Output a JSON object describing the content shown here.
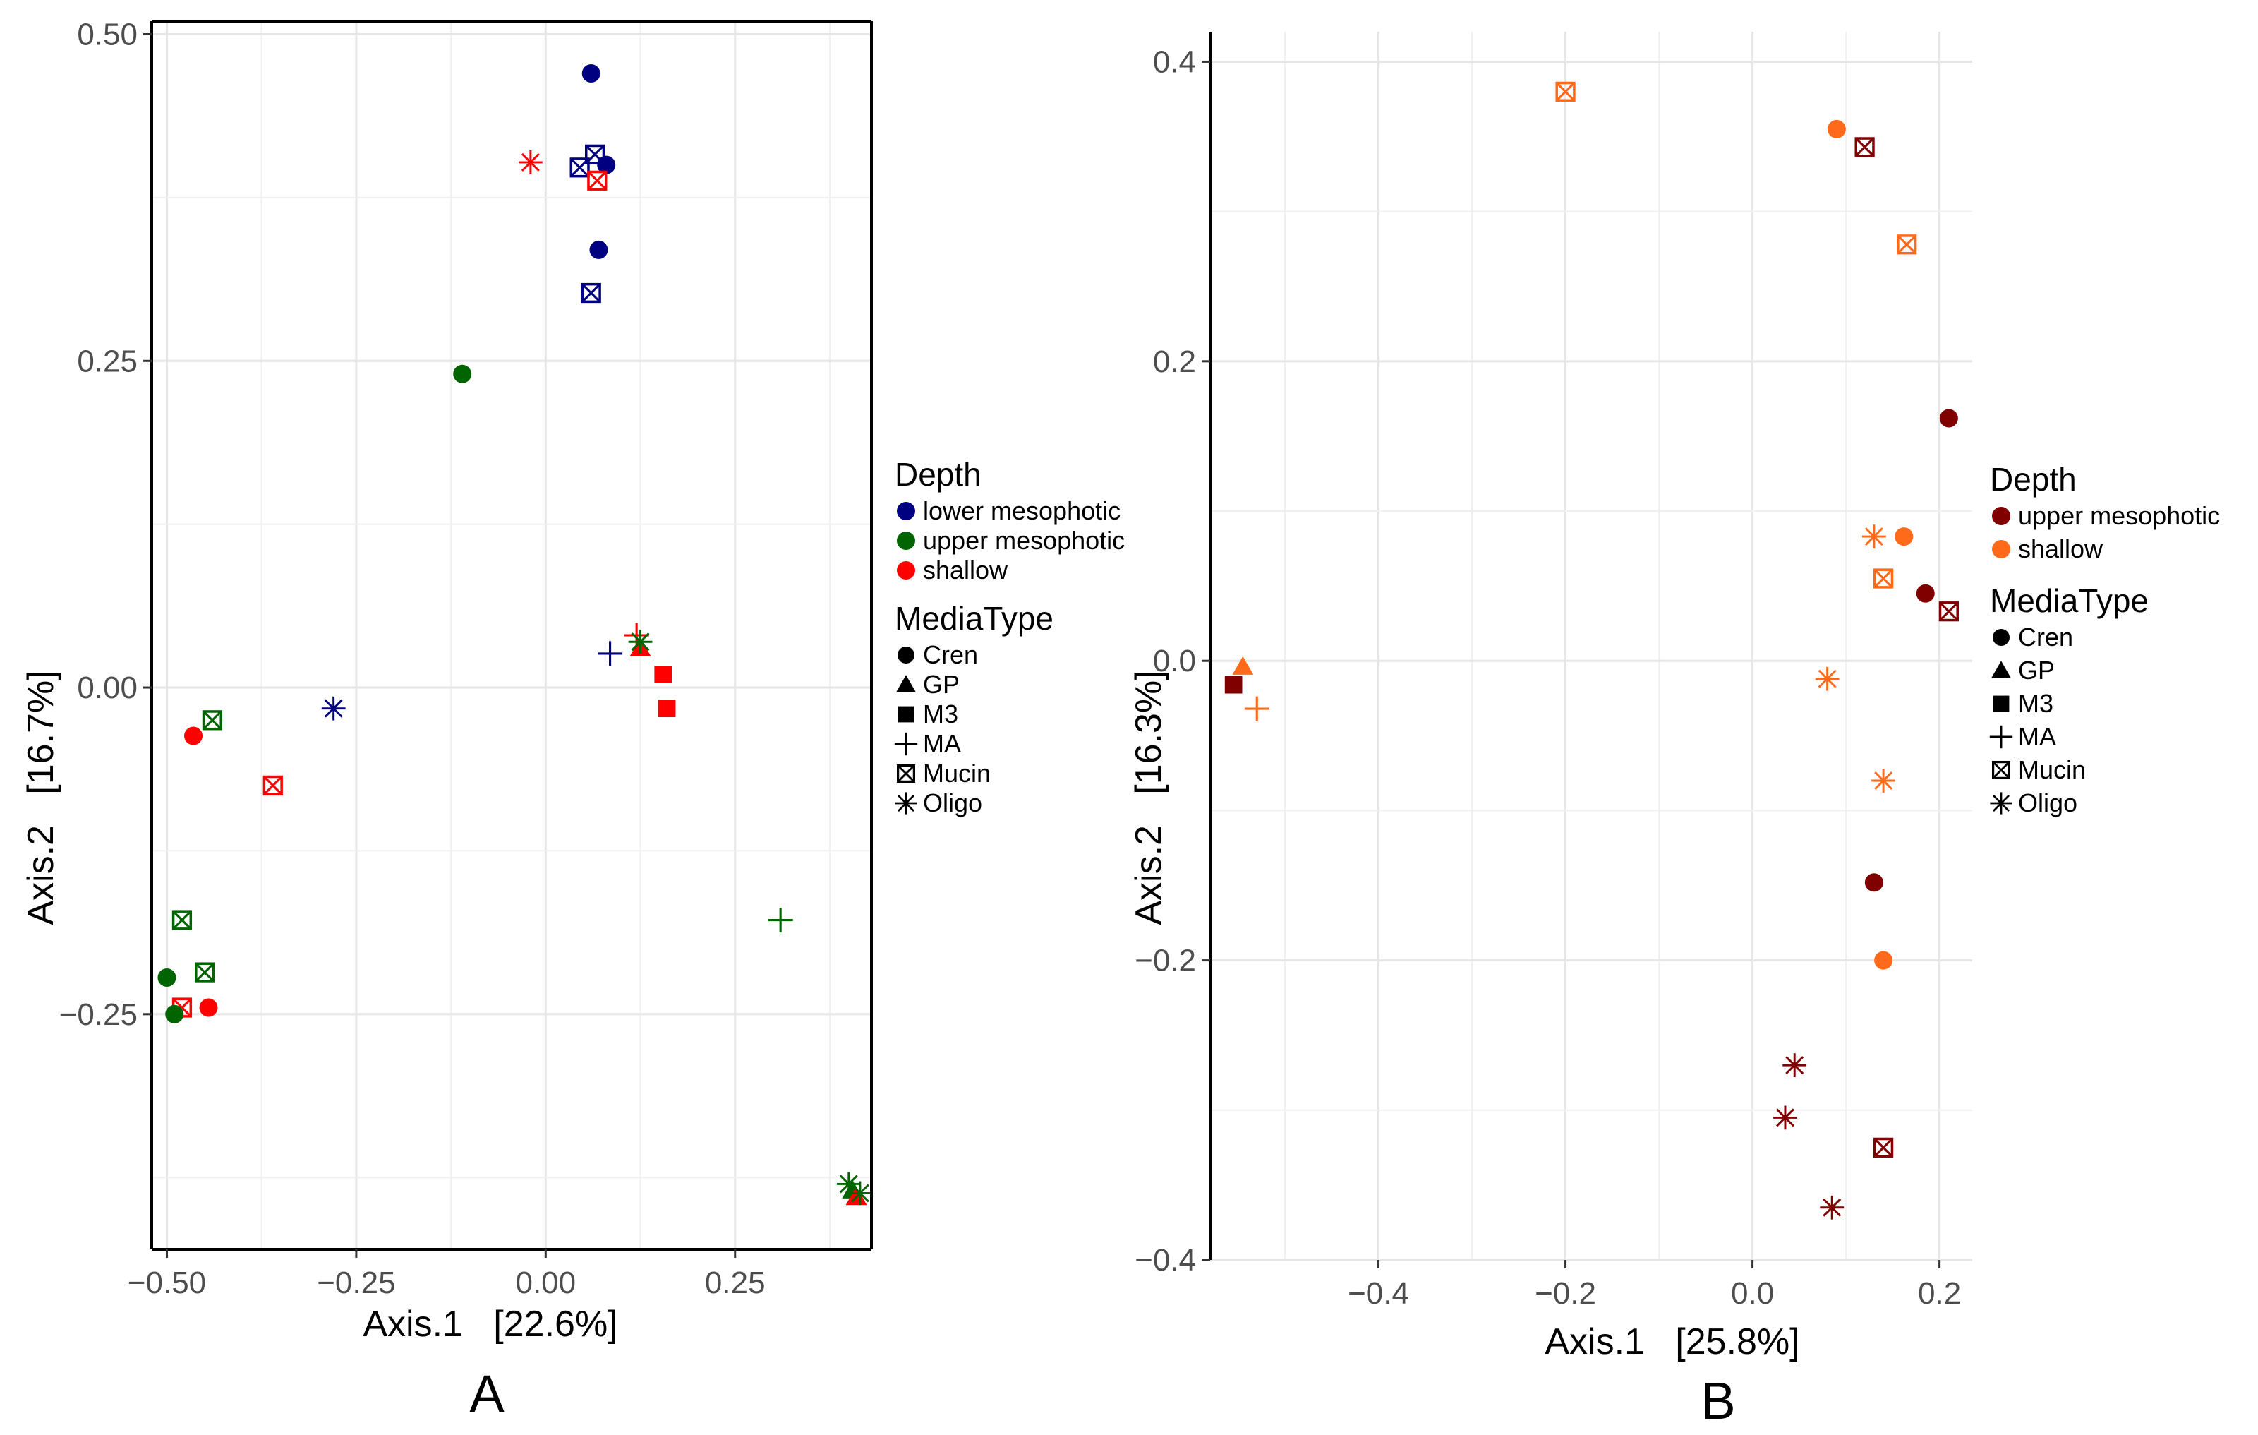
{
  "chart_data": [
    {
      "panel_label": "A",
      "type": "scatter",
      "xlabel": "Axis.1   [22.6%]",
      "ylabel": "Axis.2   [16.7%]",
      "xlim": [
        -0.52,
        0.43
      ],
      "ylim": [
        -0.43,
        0.51
      ],
      "xticks": [
        -0.5,
        -0.25,
        0.0,
        0.25
      ],
      "xtick_labels": [
        "−0.50",
        "−0.25",
        "0.00",
        "0.25"
      ],
      "yticks": [
        -0.25,
        0.0,
        0.25,
        0.5
      ],
      "ytick_labels": [
        "−0.25",
        "0.00",
        "0.25",
        "0.50"
      ],
      "grid": true,
      "legend": {
        "placement": "right",
        "color_title": "Depth",
        "color_entries": [
          {
            "label": "lower mesophotic",
            "color": "#000080"
          },
          {
            "label": "upper mesophotic",
            "color": "#006400"
          },
          {
            "label": "shallow",
            "color": "#ff0000"
          }
        ],
        "shape_title": "MediaType",
        "shape_entries": [
          {
            "label": "Cren",
            "shape": "circle"
          },
          {
            "label": "GP",
            "shape": "triangle"
          },
          {
            "label": "M3",
            "shape": "square"
          },
          {
            "label": "MA",
            "shape": "plus"
          },
          {
            "label": "Mucin",
            "shape": "boxx"
          },
          {
            "label": "Oligo",
            "shape": "asterisk"
          }
        ]
      },
      "points": [
        {
          "x": 0.06,
          "y": 0.47,
          "depth": "lower mesophotic",
          "media": "Cren"
        },
        {
          "x": 0.08,
          "y": 0.4,
          "depth": "lower mesophotic",
          "media": "Cren"
        },
        {
          "x": 0.07,
          "y": 0.335,
          "depth": "lower mesophotic",
          "media": "Cren"
        },
        {
          "x": 0.045,
          "y": 0.398,
          "depth": "lower mesophotic",
          "media": "Mucin"
        },
        {
          "x": 0.065,
          "y": 0.408,
          "depth": "lower mesophotic",
          "media": "Mucin"
        },
        {
          "x": 0.06,
          "y": 0.302,
          "depth": "lower mesophotic",
          "media": "Mucin"
        },
        {
          "x": -0.02,
          "y": 0.402,
          "depth": "shallow",
          "media": "Oligo"
        },
        {
          "x": 0.068,
          "y": 0.388,
          "depth": "shallow",
          "media": "Mucin"
        },
        {
          "x": -0.11,
          "y": 0.24,
          "depth": "upper mesophotic",
          "media": "Cren"
        },
        {
          "x": 0.085,
          "y": 0.026,
          "depth": "lower mesophotic",
          "media": "MA"
        },
        {
          "x": 0.12,
          "y": 0.04,
          "depth": "shallow",
          "media": "MA"
        },
        {
          "x": 0.125,
          "y": 0.03,
          "depth": "shallow",
          "media": "GP"
        },
        {
          "x": 0.125,
          "y": 0.035,
          "depth": "upper mesophotic",
          "media": "Oligo"
        },
        {
          "x": 0.155,
          "y": 0.01,
          "depth": "shallow",
          "media": "M3"
        },
        {
          "x": 0.16,
          "y": -0.016,
          "depth": "shallow",
          "media": "M3"
        },
        {
          "x": -0.28,
          "y": -0.016,
          "depth": "lower mesophotic",
          "media": "Oligo"
        },
        {
          "x": -0.44,
          "y": -0.025,
          "depth": "upper mesophotic",
          "media": "Mucin"
        },
        {
          "x": -0.465,
          "y": -0.037,
          "depth": "shallow",
          "media": "Cren"
        },
        {
          "x": -0.36,
          "y": -0.075,
          "depth": "shallow",
          "media": "Mucin"
        },
        {
          "x": 0.31,
          "y": -0.178,
          "depth": "upper mesophotic",
          "media": "MA"
        },
        {
          "x": -0.48,
          "y": -0.178,
          "depth": "upper mesophotic",
          "media": "Mucin"
        },
        {
          "x": -0.45,
          "y": -0.218,
          "depth": "upper mesophotic",
          "media": "Mucin"
        },
        {
          "x": -0.5,
          "y": -0.222,
          "depth": "upper mesophotic",
          "media": "Cren"
        },
        {
          "x": -0.48,
          "y": -0.245,
          "depth": "shallow",
          "media": "Mucin"
        },
        {
          "x": -0.49,
          "y": -0.25,
          "depth": "upper mesophotic",
          "media": "Cren"
        },
        {
          "x": -0.445,
          "y": -0.245,
          "depth": "shallow",
          "media": "Cren"
        },
        {
          "x": 0.4,
          "y": -0.38,
          "depth": "upper mesophotic",
          "media": "Oligo"
        },
        {
          "x": 0.405,
          "y": -0.385,
          "depth": "upper mesophotic",
          "media": "GP"
        },
        {
          "x": 0.41,
          "y": -0.39,
          "depth": "shallow",
          "media": "GP"
        },
        {
          "x": 0.415,
          "y": -0.387,
          "depth": "upper mesophotic",
          "media": "Oligo"
        }
      ]
    },
    {
      "panel_label": "B",
      "type": "scatter",
      "xlabel": "Axis.1   [25.8%]",
      "ylabel": "Axis.2   [16.3%]",
      "xlim": [
        -0.58,
        0.235
      ],
      "ylim": [
        -0.4,
        0.42
      ],
      "xticks": [
        -0.4,
        -0.2,
        0.0,
        0.2
      ],
      "xtick_labels": [
        "−0.4",
        "−0.2",
        "0.0",
        "0.2"
      ],
      "yticks": [
        -0.4,
        -0.2,
        0.0,
        0.2,
        0.4
      ],
      "ytick_labels": [
        "−0.4",
        "−0.2",
        "0.0",
        "0.2",
        "0.4"
      ],
      "grid": true,
      "legend": {
        "placement": "right",
        "color_title": "Depth",
        "color_entries": [
          {
            "label": "upper mesophotic",
            "color": "#800000"
          },
          {
            "label": "shallow",
            "color": "#ff6a1a"
          }
        ],
        "shape_title": "MediaType",
        "shape_entries": [
          {
            "label": "Cren",
            "shape": "circle"
          },
          {
            "label": "GP",
            "shape": "triangle"
          },
          {
            "label": "M3",
            "shape": "square"
          },
          {
            "label": "MA",
            "shape": "plus"
          },
          {
            "label": "Mucin",
            "shape": "boxx"
          },
          {
            "label": "Oligo",
            "shape": "asterisk"
          }
        ]
      },
      "points": [
        {
          "x": -0.2,
          "y": 0.38,
          "depth": "shallow",
          "media": "Mucin"
        },
        {
          "x": 0.09,
          "y": 0.355,
          "depth": "shallow",
          "media": "Cren"
        },
        {
          "x": 0.12,
          "y": 0.343,
          "depth": "upper mesophotic",
          "media": "Mucin"
        },
        {
          "x": 0.165,
          "y": 0.278,
          "depth": "shallow",
          "media": "Mucin"
        },
        {
          "x": 0.21,
          "y": 0.162,
          "depth": "upper mesophotic",
          "media": "Cren"
        },
        {
          "x": 0.13,
          "y": 0.083,
          "depth": "shallow",
          "media": "Oligo"
        },
        {
          "x": 0.162,
          "y": 0.083,
          "depth": "shallow",
          "media": "Cren"
        },
        {
          "x": 0.14,
          "y": 0.055,
          "depth": "shallow",
          "media": "Mucin"
        },
        {
          "x": 0.185,
          "y": 0.045,
          "depth": "upper mesophotic",
          "media": "Cren"
        },
        {
          "x": 0.21,
          "y": 0.033,
          "depth": "upper mesophotic",
          "media": "Mucin"
        },
        {
          "x": 0.08,
          "y": -0.012,
          "depth": "shallow",
          "media": "Oligo"
        },
        {
          "x": 0.14,
          "y": -0.08,
          "depth": "shallow",
          "media": "Oligo"
        },
        {
          "x": 0.13,
          "y": -0.148,
          "depth": "upper mesophotic",
          "media": "Cren"
        },
        {
          "x": 0.14,
          "y": -0.2,
          "depth": "shallow",
          "media": "Cren"
        },
        {
          "x": 0.045,
          "y": -0.27,
          "depth": "upper mesophotic",
          "media": "Oligo"
        },
        {
          "x": 0.035,
          "y": -0.305,
          "depth": "upper mesophotic",
          "media": "Oligo"
        },
        {
          "x": 0.14,
          "y": -0.325,
          "depth": "upper mesophotic",
          "media": "Mucin"
        },
        {
          "x": 0.085,
          "y": -0.365,
          "depth": "upper mesophotic",
          "media": "Oligo"
        },
        {
          "x": -0.545,
          "y": -0.004,
          "depth": "shallow",
          "media": "GP"
        },
        {
          "x": -0.555,
          "y": -0.016,
          "depth": "upper mesophotic",
          "media": "M3"
        },
        {
          "x": -0.53,
          "y": -0.032,
          "depth": "shallow",
          "media": "MA"
        }
      ]
    }
  ]
}
